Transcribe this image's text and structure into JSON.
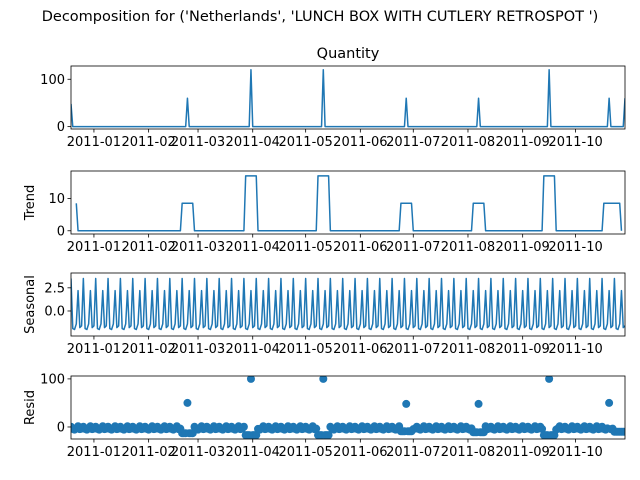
{
  "figure": {
    "suptitle": "Decomposition for ('Netherlands', 'LUNCH BOX WITH CUTLERY RETROSPOT ')"
  },
  "chart_data": [
    {
      "type": "line",
      "title": "Quantity",
      "ylabel": "",
      "x_range": [
        "2010-12-19",
        "2011-10-29"
      ],
      "ylim": [
        -5,
        128
      ],
      "yticks": [
        0,
        100
      ],
      "ytick_labels": [
        "0",
        "100"
      ],
      "xticks": [
        "2011-01-01",
        "2011-02-01",
        "2011-03-01",
        "2011-04-01",
        "2011-05-01",
        "2011-06-01",
        "2011-07-01",
        "2011-08-01",
        "2011-09-01",
        "2011-10-01"
      ],
      "xtick_labels": [
        "2011-01",
        "2011-02",
        "2011-03",
        "2011-04",
        "2011-05",
        "2011-06",
        "2011-07",
        "2011-08",
        "2011-09",
        "2011-10"
      ],
      "baseline": 0,
      "spikes": [
        {
          "x": "2010-12-19",
          "y": 48
        },
        {
          "x": "2011-02-23",
          "y": 60
        },
        {
          "x": "2011-03-31",
          "y": 120
        },
        {
          "x": "2011-05-11",
          "y": 120
        },
        {
          "x": "2011-06-27",
          "y": 60
        },
        {
          "x": "2011-08-07",
          "y": 60
        },
        {
          "x": "2011-09-16",
          "y": 120
        },
        {
          "x": "2011-10-20",
          "y": 60
        },
        {
          "x": "2011-10-29",
          "y": 60
        }
      ],
      "color": "#1f77b4"
    },
    {
      "type": "line",
      "title": "",
      "ylabel": "Trend",
      "x_range": [
        "2010-12-19",
        "2011-10-29"
      ],
      "ylim": [
        -1,
        18.5
      ],
      "yticks": [
        0,
        10
      ],
      "ytick_labels": [
        "0",
        "10"
      ],
      "xticks": [
        "2011-01-01",
        "2011-02-01",
        "2011-03-01",
        "2011-04-01",
        "2011-05-01",
        "2011-06-01",
        "2011-07-01",
        "2011-08-01",
        "2011-09-01",
        "2011-10-01"
      ],
      "xtick_labels": [
        "2011-01",
        "2011-02",
        "2011-03",
        "2011-04",
        "2011-05",
        "2011-06",
        "2011-07",
        "2011-08",
        "2011-09",
        "2011-10"
      ],
      "start": {
        "x": "2010-12-22",
        "y": 8.5
      },
      "plateaus": [
        {
          "start": "2011-02-20",
          "end": "2011-02-26",
          "y": 8.5
        },
        {
          "start": "2011-03-28",
          "end": "2011-04-03",
          "y": 17
        },
        {
          "start": "2011-05-08",
          "end": "2011-05-14",
          "y": 17
        },
        {
          "start": "2011-06-24",
          "end": "2011-06-30",
          "y": 8.5
        },
        {
          "start": "2011-08-04",
          "end": "2011-08-10",
          "y": 8.5
        },
        {
          "start": "2011-09-13",
          "end": "2011-09-19",
          "y": 17
        },
        {
          "start": "2011-10-17",
          "end": "2011-10-26",
          "y": 8.5
        }
      ],
      "color": "#1f77b4"
    },
    {
      "type": "line",
      "title": "",
      "ylabel": "Seasonal",
      "x_range": [
        "2010-12-19",
        "2011-10-29"
      ],
      "ylim": [
        -2.7,
        4.1
      ],
      "yticks": [
        0.0,
        2.5
      ],
      "ytick_labels": [
        "0.0",
        "2.5"
      ],
      "xticks": [
        "2011-01-01",
        "2011-02-01",
        "2011-03-01",
        "2011-04-01",
        "2011-05-01",
        "2011-06-01",
        "2011-07-01",
        "2011-08-01",
        "2011-09-01",
        "2011-10-01"
      ],
      "xtick_labels": [
        "2011-01",
        "2011-02",
        "2011-03",
        "2011-04",
        "2011-05",
        "2011-06",
        "2011-07",
        "2011-08",
        "2011-09",
        "2011-10"
      ],
      "period_days": 7,
      "weekly_pattern": [
        3.5,
        -1.9,
        -2.0,
        -1.4,
        2.2,
        -1.8,
        -1.6
      ],
      "color": "#1f77b4"
    },
    {
      "type": "scatter",
      "title": "",
      "ylabel": "Resid",
      "x_range": [
        "2010-12-19",
        "2011-10-29"
      ],
      "ylim": [
        -25,
        106
      ],
      "yticks": [
        0,
        100
      ],
      "ytick_labels": [
        "0",
        "100"
      ],
      "xticks": [
        "2011-01-01",
        "2011-02-01",
        "2011-03-01",
        "2011-04-01",
        "2011-05-01",
        "2011-06-01",
        "2011-07-01",
        "2011-08-01",
        "2011-09-01",
        "2011-10-01"
      ],
      "xtick_labels": [
        "2011-01",
        "2011-02",
        "2011-03",
        "2011-04",
        "2011-05",
        "2011-06",
        "2011-07",
        "2011-08",
        "2011-09",
        "2011-10"
      ],
      "baseline_noise": [
        0.5,
        -4.0,
        -5.5,
        -3.0,
        1.5,
        -4.5,
        -3.5
      ],
      "outliers": [
        {
          "x": "2011-02-23",
          "y": 50
        },
        {
          "x": "2011-03-31",
          "y": 100
        },
        {
          "x": "2011-05-11",
          "y": 100
        },
        {
          "x": "2011-06-27",
          "y": 48
        },
        {
          "x": "2011-08-07",
          "y": 48
        },
        {
          "x": "2011-09-16",
          "y": 100
        },
        {
          "x": "2011-10-20",
          "y": 50
        }
      ],
      "dips": [
        {
          "start": "2011-02-20",
          "end": "2011-02-26",
          "y": -13
        },
        {
          "start": "2011-03-28",
          "end": "2011-04-03",
          "y": -17
        },
        {
          "start": "2011-05-08",
          "end": "2011-05-14",
          "y": -17
        },
        {
          "start": "2011-06-24",
          "end": "2011-06-30",
          "y": -9
        },
        {
          "start": "2011-08-04",
          "end": "2011-08-10",
          "y": -11
        },
        {
          "start": "2011-09-13",
          "end": "2011-09-19",
          "y": -17
        },
        {
          "start": "2011-10-23",
          "end": "2011-10-29",
          "y": -10
        }
      ],
      "color": "#1f77b4"
    }
  ]
}
